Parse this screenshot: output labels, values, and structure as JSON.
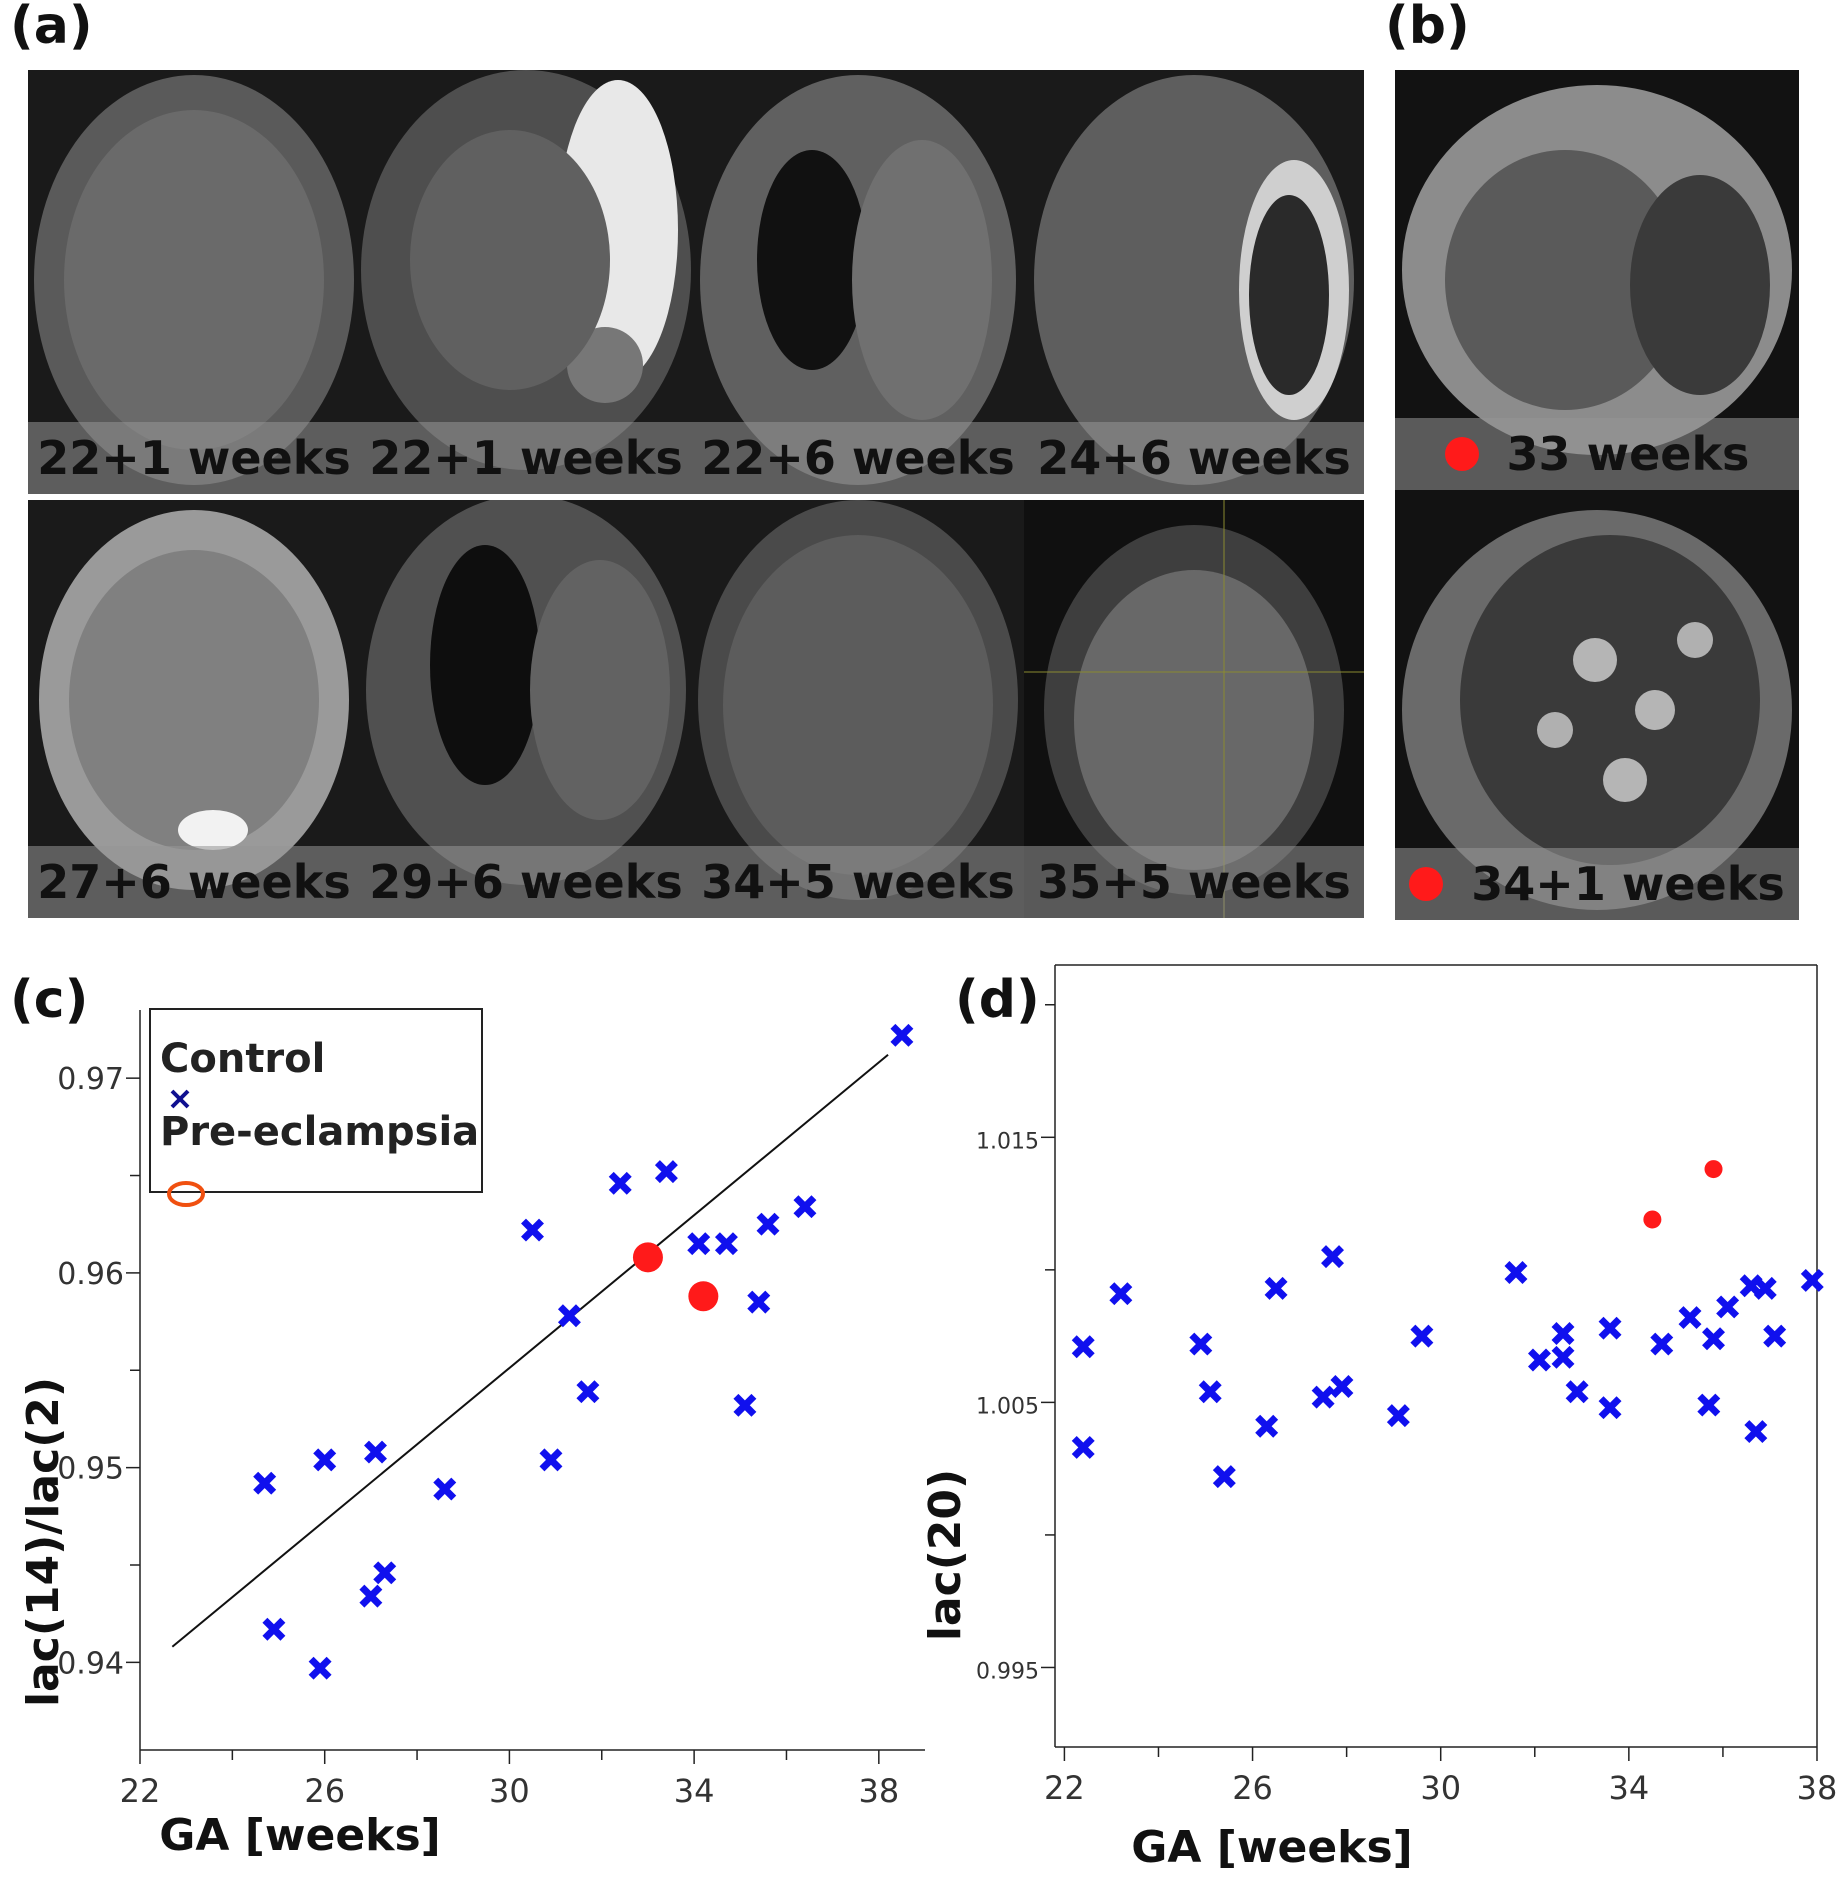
{
  "panel_labels": {
    "a": "(a)",
    "b": "(b)",
    "c": "(c)",
    "d": "(d)"
  },
  "panel_a": {
    "images": [
      {
        "caption": "22+1 weeks",
        "alt": "placenta MRI slice"
      },
      {
        "caption": "22+1 weeks",
        "alt": "placenta and fetus MRI slice"
      },
      {
        "caption": "22+6 weeks",
        "alt": "placenta MRI slice"
      },
      {
        "caption": "24+6 weeks",
        "alt": "placenta and fetus MRI slice"
      },
      {
        "caption": "27+6 weeks",
        "alt": "placenta MRI slice"
      },
      {
        "caption": "29+6 weeks",
        "alt": "placenta MRI slice"
      },
      {
        "caption": "34+5 weeks",
        "alt": "placenta MRI slice"
      },
      {
        "caption": "35+5 weeks",
        "alt": "placenta MRI slice"
      }
    ]
  },
  "panel_b": {
    "images": [
      {
        "caption": "33 weeks",
        "marker": "pre-eclampsia"
      },
      {
        "caption": "34+1 weeks",
        "marker": "pre-eclampsia"
      }
    ]
  },
  "colors": {
    "control": "#1010ee",
    "pre_eclampsia": "#ff1a1a",
    "legend_ellipse": "#f05010",
    "legend_x": "#101090",
    "fit_line": "#111111"
  },
  "chart_data": [
    {
      "panel": "c",
      "type": "scatter",
      "xlabel": "GA [weeks]",
      "ylabel": "lac(14)/lac(2)",
      "xlim": [
        22,
        39
      ],
      "ylim": [
        0.9355,
        0.9735
      ],
      "xticks": [
        22,
        26,
        30,
        34,
        38
      ],
      "yticks": [
        0.94,
        0.95,
        0.96,
        0.97
      ],
      "ytick_labels": [
        "0.94",
        "0.95",
        "0.96",
        "0.97"
      ],
      "legend": {
        "position": "top-left",
        "entries": [
          "Control",
          "Pre-eclampsia"
        ]
      },
      "fit_line": {
        "x": [
          22.7,
          38.2
        ],
        "y": [
          0.9408,
          0.9712
        ]
      },
      "series": [
        {
          "name": "Control",
          "marker": "x",
          "x": [
            24.7,
            24.9,
            25.9,
            26.0,
            27.0,
            27.1,
            27.3,
            28.6,
            30.5,
            30.9,
            31.3,
            31.7,
            32.4,
            33.4,
            34.1,
            34.7,
            35.1,
            35.4,
            35.6,
            36.4,
            38.5
          ],
          "y": [
            0.9492,
            0.9417,
            0.9397,
            0.9504,
            0.9434,
            0.9508,
            0.9446,
            0.9489,
            0.9622,
            0.9504,
            0.9578,
            0.9539,
            0.9646,
            0.9652,
            0.9615,
            0.9615,
            0.9532,
            0.9585,
            0.9625,
            0.9634,
            0.9722
          ]
        },
        {
          "name": "Pre-eclampsia",
          "marker": "o",
          "x": [
            33.0,
            34.2
          ],
          "y": [
            0.9608,
            0.9588
          ]
        }
      ]
    },
    {
      "panel": "d",
      "type": "scatter",
      "xlabel": "GA [weeks]",
      "ylabel": "lac(20)",
      "xlim": [
        21.8,
        38.0
      ],
      "ylim": [
        0.992,
        1.0215
      ],
      "xticks": [
        22,
        26,
        30,
        34,
        38
      ],
      "yticks": [
        0.995,
        1.005,
        1.015
      ],
      "ytick_labels": [
        "0.995",
        "1.005",
        "1.015"
      ],
      "series": [
        {
          "name": "Control",
          "marker": "x",
          "x": [
            22.4,
            22.4,
            23.2,
            24.9,
            25.1,
            25.4,
            26.3,
            26.5,
            27.5,
            27.7,
            27.9,
            29.1,
            29.6,
            31.6,
            32.1,
            32.6,
            32.6,
            32.9,
            33.6,
            33.6,
            34.7,
            35.3,
            35.7,
            35.8,
            36.1,
            36.6,
            36.7,
            36.9,
            37.1,
            37.9
          ],
          "y": [
            1.0071,
            1.0033,
            1.0091,
            1.0072,
            1.0054,
            1.0022,
            1.0041,
            1.0093,
            1.0052,
            1.0105,
            1.0056,
            1.0045,
            1.0075,
            1.0099,
            1.0066,
            1.0076,
            1.0067,
            1.0054,
            1.0048,
            1.0078,
            1.0072,
            1.0082,
            1.0049,
            1.0074,
            1.0086,
            1.0094,
            1.0039,
            1.0093,
            1.0075,
            1.0096
          ]
        },
        {
          "name": "Pre-eclampsia",
          "marker": "o",
          "x": [
            34.5,
            35.8
          ],
          "y": [
            1.0119,
            1.0138
          ]
        }
      ]
    }
  ]
}
